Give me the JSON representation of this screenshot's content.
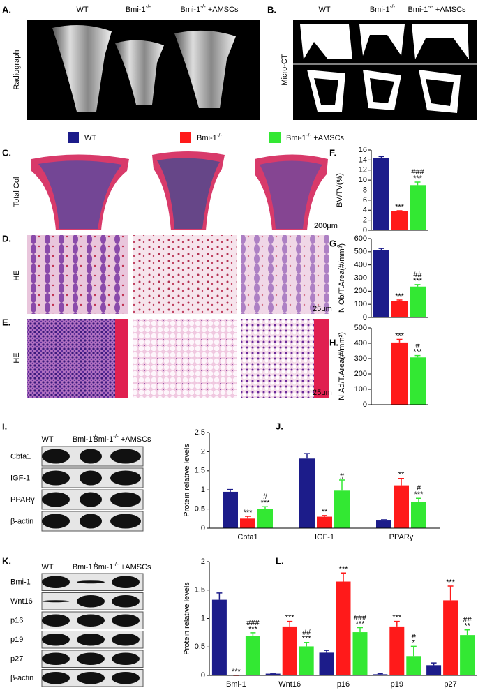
{
  "legend": [
    {
      "name": "WT",
      "color": "#1c1c8a"
    },
    {
      "name": "Bmi-1-/-",
      "color": "#ff1a1a"
    },
    {
      "name": "Bmi-1-/- +AMSCs",
      "color": "#33e833"
    }
  ],
  "radiograph": {
    "label": "A.",
    "side": "Radiograph",
    "headers": [
      "WT",
      "Bmi-1-/-",
      "Bmi-1-/- +AMSCs"
    ]
  },
  "micro_ct": {
    "label": "B.",
    "side": "Micro-CT",
    "headers": [
      "WT",
      "Bmi-1-/-",
      "Bmi-1-/- +AMSCs"
    ]
  },
  "histology": [
    {
      "label": "C.",
      "side": "Total Col",
      "scale": "200μm"
    },
    {
      "label": "D.",
      "side": "HE",
      "scale": "25μm"
    },
    {
      "label": "E.",
      "side": "HE",
      "scale": "25μm"
    }
  ],
  "blots": [
    {
      "label": "I.",
      "headers": [
        "WT",
        "Bmi-1-/-",
        "Bmi-1-/- +AMSCs"
      ],
      "rows": [
        "Cbfa1",
        "IGF-1",
        "PPARγ",
        "β-actin"
      ]
    },
    {
      "label": "K.",
      "headers": [
        "WT",
        "Bmi-1-/-",
        "Bmi-1-/- +AMSCs"
      ],
      "rows": [
        "Bmi-1",
        "Wnt16",
        "p16",
        "p19",
        "p27",
        "β-actin"
      ]
    }
  ],
  "chart_data": [
    {
      "type": "bar",
      "label": "F.",
      "ylabel": "BV/TV(%)",
      "ylim": [
        0,
        16
      ],
      "yticks": [
        0,
        2,
        4,
        6,
        8,
        10,
        12,
        14,
        16
      ],
      "series": [
        {
          "values": [
            14.4
          ],
          "errors": [
            0.3
          ]
        },
        {
          "values": [
            3.8
          ],
          "errors": [
            0.1
          ],
          "annotations": [
            [
              "***"
            ]
          ]
        },
        {
          "values": [
            9.0
          ],
          "errors": [
            0.6
          ],
          "annotations": [
            [
              "***",
              "###"
            ]
          ]
        }
      ]
    },
    {
      "type": "bar",
      "label": "G.",
      "ylabel": "N.Ob/T.Area(#/mm²)",
      "ylim": [
        0,
        600
      ],
      "yticks": [
        0,
        100,
        200,
        300,
        400,
        500,
        600
      ],
      "series": [
        {
          "values": [
            510
          ],
          "errors": [
            15
          ]
        },
        {
          "values": [
            125
          ],
          "errors": [
            8
          ],
          "annotations": [
            [
              "***"
            ]
          ]
        },
        {
          "values": [
            235
          ],
          "errors": [
            15
          ],
          "annotations": [
            [
              "***",
              "##"
            ]
          ]
        }
      ]
    },
    {
      "type": "bar",
      "label": "H.",
      "ylabel": "N.Ad/T.Area(#/mm²)",
      "ylim": [
        0,
        500
      ],
      "yticks": [
        0,
        100,
        200,
        300,
        400,
        500
      ],
      "series": [
        {
          "values": [
            null
          ],
          "errors": [
            null
          ]
        },
        {
          "values": [
            405
          ],
          "errors": [
            20
          ],
          "annotations": [
            [
              "***"
            ]
          ]
        },
        {
          "values": [
            308
          ],
          "errors": [
            12
          ],
          "annotations": [
            [
              "***",
              "#"
            ]
          ]
        }
      ]
    },
    {
      "type": "bar",
      "label": "J.",
      "ylabel": "Protein relative levels",
      "ylim": [
        0,
        2.5
      ],
      "yticks": [
        0,
        0.5,
        1,
        1.5,
        2,
        2.5
      ],
      "categories": [
        "Cbfa1",
        "IGF-1",
        "PPARγ"
      ],
      "series": [
        {
          "values": [
            0.95,
            1.82,
            0.2
          ],
          "errors": [
            0.06,
            0.13,
            0.02
          ]
        },
        {
          "values": [
            0.25,
            0.3,
            1.12
          ],
          "errors": [
            0.06,
            0.03,
            0.18
          ],
          "annotations": [
            [
              "***"
            ],
            [
              "**"
            ],
            [
              "**"
            ]
          ]
        },
        {
          "values": [
            0.5,
            0.98,
            0.68
          ],
          "errors": [
            0.06,
            0.28,
            0.1
          ],
          "annotations": [
            [
              "***",
              "#"
            ],
            [
              "#"
            ],
            [
              "***",
              "#"
            ]
          ]
        }
      ]
    },
    {
      "type": "bar",
      "label": "L.",
      "ylabel": "Protein relative levels",
      "ylim": [
        0,
        2
      ],
      "yticks": [
        0,
        0.5,
        1,
        1.5,
        2
      ],
      "categories": [
        "Bmi-1",
        "Wnt16",
        "p16",
        "p19",
        "p27"
      ],
      "series": [
        {
          "values": [
            1.33,
            0.03,
            0.4,
            0.02,
            0.18
          ],
          "errors": [
            0.12,
            0.01,
            0.04,
            0.01,
            0.04
          ]
        },
        {
          "values": [
            0,
            0.86,
            1.65,
            0.86,
            1.32
          ],
          "errors": [
            0,
            0.09,
            0.15,
            0.09,
            0.25
          ],
          "annotations": [
            [
              "***"
            ],
            [
              "***"
            ],
            [
              "***"
            ],
            [
              "***"
            ],
            [
              "***"
            ]
          ]
        },
        {
          "values": [
            0.69,
            0.51,
            0.76,
            0.34,
            0.71
          ],
          "errors": [
            0.06,
            0.07,
            0.08,
            0.17,
            0.09
          ],
          "annotations": [
            [
              "***",
              "###"
            ],
            [
              "***",
              "##"
            ],
            [
              "***",
              "###"
            ],
            [
              "*",
              "#"
            ],
            [
              "**",
              "##"
            ]
          ]
        }
      ]
    }
  ]
}
